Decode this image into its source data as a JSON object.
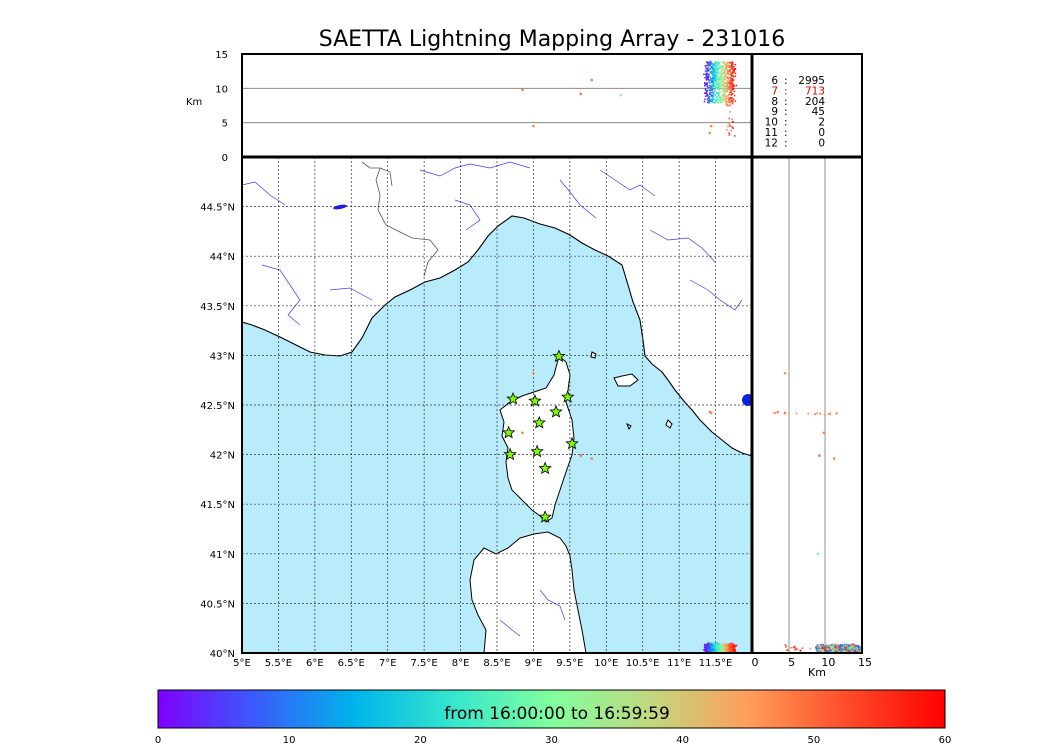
{
  "chart_data": {
    "type": "scatter",
    "title": "SAETTA Lightning Mapping Array - 231016",
    "map": {
      "lon_range": [
        5,
        12
      ],
      "lat_range": [
        40,
        45
      ],
      "lon_ticks": [
        "5°E",
        "5.5°E",
        "6°E",
        "6.5°E",
        "7°E",
        "7.5°E",
        "8°E",
        "8.5°E",
        "9°E",
        "9.5°E",
        "10°E",
        "10.5°E",
        "11°E",
        "11.5°E"
      ],
      "lat_ticks": [
        "40°N",
        "40.5°N",
        "41°N",
        "41.5°N",
        "42°N",
        "42.5°N",
        "43°N",
        "43.5°N",
        "44°N",
        "44.5°N"
      ],
      "sea_color": "#b8ecfb",
      "grid": true,
      "stations": [
        {
          "lon": 9.35,
          "lat": 42.99
        },
        {
          "lon": 8.72,
          "lat": 42.56
        },
        {
          "lon": 9.02,
          "lat": 42.54
        },
        {
          "lon": 9.47,
          "lat": 42.58
        },
        {
          "lon": 9.31,
          "lat": 42.43
        },
        {
          "lon": 9.08,
          "lat": 42.32
        },
        {
          "lon": 8.66,
          "lat": 42.22
        },
        {
          "lon": 9.53,
          "lat": 42.11
        },
        {
          "lon": 8.68,
          "lat": 42.0
        },
        {
          "lon": 9.05,
          "lat": 42.03
        },
        {
          "lon": 9.16,
          "lat": 41.86
        },
        {
          "lon": 9.16,
          "lat": 41.37
        }
      ]
    },
    "altitude_axis": {
      "label": "Km",
      "range": [
        0,
        15
      ],
      "ticks": [
        "0",
        "5",
        "10",
        "15"
      ],
      "ref_lines": [
        5,
        10
      ]
    },
    "lon_alt_axis": {
      "label": "Km",
      "range": [
        0,
        15
      ],
      "ticks": [
        "0",
        "5",
        "10",
        "15"
      ]
    },
    "station_counts": [
      {
        "stations": "6",
        "count": "2995",
        "highlight": false
      },
      {
        "stations": "7",
        "count": "713",
        "highlight": true
      },
      {
        "stations": "8",
        "count": "204",
        "highlight": false
      },
      {
        "stations": "9",
        "count": "45",
        "highlight": false
      },
      {
        "stations": "10",
        "count": "2",
        "highlight": false
      },
      {
        "stations": "11",
        "count": "0",
        "highlight": false
      },
      {
        "stations": "12",
        "count": "0",
        "highlight": false
      }
    ],
    "colorbar": {
      "label": "from 16:00:00 to 16:59:59",
      "range": [
        0,
        60
      ],
      "ticks": [
        "0",
        "10",
        "20",
        "30",
        "40",
        "50",
        "60"
      ],
      "colors": [
        "#7f00ff",
        "#3a5cfb",
        "#00b4eb",
        "#36e6cd",
        "#80ff9e",
        "#c0d880",
        "#ff9e5a",
        "#ff4c2a",
        "#ff0000"
      ]
    },
    "sources": {
      "main_cluster": {
        "lon_range": [
          11.35,
          11.75
        ],
        "lat_range": [
          40.0,
          40.05
        ],
        "alt_range_km": [
          8,
          14
        ],
        "time_min_range": [
          0,
          60
        ]
      },
      "scattered": [
        {
          "lon": 8.85,
          "lat": 42.22,
          "alt": 9.8,
          "t": 48
        },
        {
          "lon": 9.0,
          "lat": 42.82,
          "alt": 4.5,
          "t": 47
        },
        {
          "lon": 9.65,
          "lat": 41.99,
          "alt": 9.2,
          "t": 49
        },
        {
          "lon": 9.8,
          "lat": 41.96,
          "alt": 11.2,
          "t": 48
        },
        {
          "lon": 10.2,
          "lat": 41.0,
          "alt": 9.0,
          "t": 30
        },
        {
          "lon": 11.42,
          "lat": 42.43,
          "alt": 3.5,
          "t": 47
        },
        {
          "lon": 11.44,
          "lat": 42.42,
          "alt": 4.5,
          "t": 48
        }
      ]
    }
  }
}
